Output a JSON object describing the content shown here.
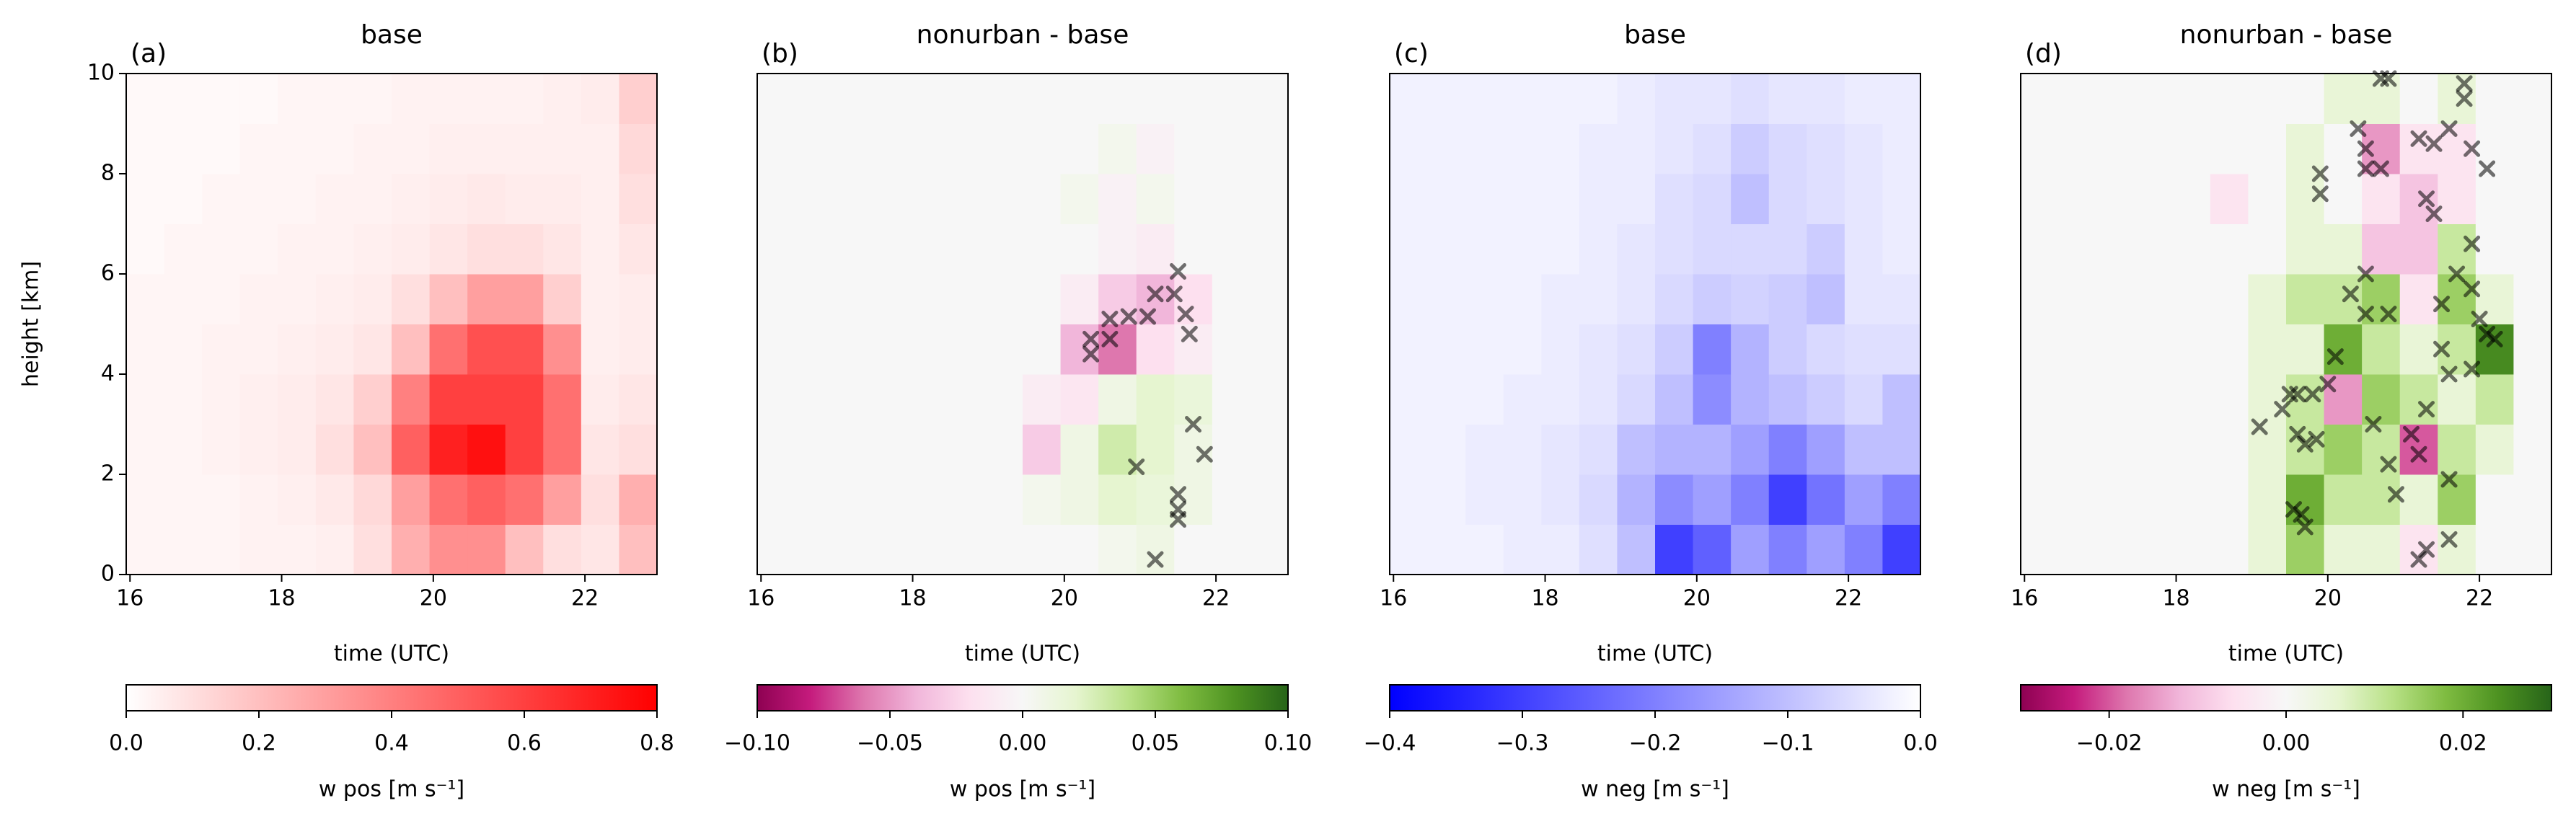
{
  "chart_data": [
    {
      "type": "heatmap",
      "title": "base",
      "panel_label": "(a)",
      "xlabel": "time (UTC)",
      "ylabel": "height [km]",
      "x_edges": [
        15.95,
        16.45,
        16.95,
        17.45,
        17.95,
        18.45,
        18.95,
        19.45,
        19.95,
        20.45,
        20.95,
        21.45,
        21.95,
        22.45,
        22.95
      ],
      "y_edges": [
        0,
        1,
        2,
        3,
        4,
        5,
        6,
        7,
        8,
        9,
        10
      ],
      "values": [
        [
          0.03,
          0.03,
          0.03,
          0.04,
          0.04,
          0.05,
          0.1,
          0.25,
          0.35,
          0.35,
          0.2,
          0.1,
          0.08,
          0.2
        ],
        [
          0.03,
          0.03,
          0.03,
          0.04,
          0.05,
          0.07,
          0.12,
          0.3,
          0.45,
          0.5,
          0.45,
          0.3,
          0.1,
          0.25
        ],
        [
          0.03,
          0.03,
          0.04,
          0.05,
          0.06,
          0.1,
          0.2,
          0.5,
          0.7,
          0.75,
          0.6,
          0.45,
          0.08,
          0.1
        ],
        [
          0.03,
          0.03,
          0.04,
          0.05,
          0.06,
          0.08,
          0.15,
          0.4,
          0.6,
          0.6,
          0.6,
          0.45,
          0.06,
          0.08
        ],
        [
          0.03,
          0.03,
          0.04,
          0.04,
          0.05,
          0.06,
          0.08,
          0.2,
          0.45,
          0.55,
          0.55,
          0.35,
          0.05,
          0.06
        ],
        [
          0.03,
          0.03,
          0.03,
          0.04,
          0.04,
          0.05,
          0.06,
          0.1,
          0.2,
          0.3,
          0.3,
          0.15,
          0.05,
          0.06
        ],
        [
          0.02,
          0.03,
          0.03,
          0.03,
          0.04,
          0.04,
          0.05,
          0.06,
          0.08,
          0.1,
          0.1,
          0.08,
          0.05,
          0.08
        ],
        [
          0.02,
          0.02,
          0.03,
          0.03,
          0.03,
          0.04,
          0.04,
          0.05,
          0.06,
          0.07,
          0.06,
          0.06,
          0.05,
          0.1
        ],
        [
          0.02,
          0.02,
          0.02,
          0.03,
          0.03,
          0.03,
          0.04,
          0.04,
          0.05,
          0.05,
          0.05,
          0.05,
          0.05,
          0.12
        ],
        [
          0.02,
          0.02,
          0.02,
          0.02,
          0.03,
          0.03,
          0.03,
          0.04,
          0.04,
          0.04,
          0.04,
          0.05,
          0.06,
          0.15
        ]
      ],
      "xlim": [
        15.95,
        22.95
      ],
      "ylim": [
        0,
        10
      ],
      "xticks": [
        16,
        18,
        20,
        22
      ],
      "yticks": [
        0,
        2,
        4,
        6,
        8,
        10
      ],
      "colorbar": {
        "label": "w pos [m s⁻¹]",
        "lim": [
          0,
          0.8
        ],
        "cmap": [
          "#ffffff",
          "#ff0000"
        ],
        "ticks": [
          {
            "value": 0,
            "label": "0.0"
          },
          {
            "value": 0.2,
            "label": "0.2"
          },
          {
            "value": 0.4,
            "label": "0.4"
          },
          {
            "value": 0.6,
            "label": "0.6"
          },
          {
            "value": 0.8,
            "label": "0.8"
          }
        ]
      }
    },
    {
      "type": "heatmap",
      "title": "nonurban - base",
      "panel_label": "(b)",
      "xlabel": "time (UTC)",
      "x_edges": [
        15.95,
        16.45,
        16.95,
        17.45,
        17.95,
        18.45,
        18.95,
        19.45,
        19.95,
        20.45,
        20.95,
        21.45,
        21.95,
        22.45,
        22.95
      ],
      "y_edges": [
        0,
        1,
        2,
        3,
        4,
        5,
        6,
        7,
        8,
        9,
        10
      ],
      "values": [
        [
          0,
          0,
          0,
          0,
          0,
          0,
          0,
          0,
          0,
          0.005,
          0.01,
          0,
          0,
          0
        ],
        [
          0,
          0,
          0,
          0,
          0,
          0,
          0,
          0.005,
          0.01,
          0.02,
          0.015,
          0.01,
          0,
          0
        ],
        [
          0,
          0,
          0,
          0,
          0,
          0,
          0,
          -0.03,
          0.01,
          0.03,
          0.02,
          0.01,
          0,
          0
        ],
        [
          0,
          0,
          0,
          0,
          0,
          0,
          0,
          -0.01,
          -0.015,
          0.01,
          0.02,
          0.015,
          0,
          0
        ],
        [
          0,
          0,
          0,
          0,
          0,
          0,
          0,
          0,
          -0.04,
          -0.06,
          -0.02,
          -0.01,
          0,
          0
        ],
        [
          0,
          0,
          0,
          0,
          0,
          0,
          0,
          0,
          -0.01,
          -0.03,
          -0.04,
          -0.02,
          0,
          0
        ],
        [
          0,
          0,
          0,
          0,
          0,
          0,
          0,
          0,
          0,
          -0.005,
          -0.01,
          0,
          0,
          0
        ],
        [
          0,
          0,
          0,
          0,
          0,
          0,
          0,
          0,
          0.005,
          -0.005,
          0.005,
          0,
          0,
          0
        ],
        [
          0,
          0,
          0,
          0,
          0,
          0,
          0,
          0,
          0,
          0.005,
          -0.005,
          0,
          0,
          0
        ],
        [
          0,
          0,
          0,
          0,
          0,
          0,
          0,
          0,
          0,
          0,
          0,
          0,
          0,
          0
        ]
      ],
      "xlim": [
        15.95,
        22.95
      ],
      "ylim": [
        0,
        10
      ],
      "xticks": [
        16,
        18,
        20,
        22
      ],
      "markers": {
        "color": "#000000",
        "x": [
          20.35,
          20.35,
          20.6,
          20.6,
          20.85,
          21.1,
          21.2,
          21.45,
          21.5,
          21.6,
          21.65,
          21.7,
          21.85,
          20.95,
          21.5,
          21.5,
          21.5,
          21.2
        ],
        "y": [
          4.7,
          4.4,
          4.7,
          5.1,
          5.15,
          5.15,
          5.6,
          5.6,
          6.05,
          5.2,
          4.8,
          3.0,
          2.4,
          2.15,
          1.6,
          1.3,
          1.1,
          0.3
        ]
      },
      "colorbar": {
        "label": "w pos [m s⁻¹]",
        "lim": [
          -0.1,
          0.1
        ],
        "cmap": [
          "#8e0152",
          "#c51b7d",
          "#de77ae",
          "#f1b6da",
          "#fde0ef",
          "#f7f7f7",
          "#e6f5d0",
          "#b8e186",
          "#7fbc41",
          "#4d9221",
          "#276419"
        ],
        "ticks": [
          {
            "value": -0.1,
            "label": "−0.10"
          },
          {
            "value": -0.05,
            "label": "−0.05"
          },
          {
            "value": 0,
            "label": "0.00"
          },
          {
            "value": 0.05,
            "label": "0.05"
          },
          {
            "value": 0.1,
            "label": "0.10"
          }
        ]
      }
    },
    {
      "type": "heatmap",
      "title": "base",
      "panel_label": "(c)",
      "xlabel": "time (UTC)",
      "x_edges": [
        15.95,
        16.45,
        16.95,
        17.45,
        17.95,
        18.45,
        18.95,
        19.45,
        19.95,
        20.45,
        20.95,
        21.45,
        21.95,
        22.45,
        22.95
      ],
      "y_edges": [
        0,
        1,
        2,
        3,
        4,
        5,
        6,
        7,
        8,
        9,
        10
      ],
      "values": [
        [
          -0.02,
          -0.02,
          -0.02,
          -0.03,
          -0.03,
          -0.05,
          -0.1,
          -0.3,
          -0.25,
          -0.15,
          -0.2,
          -0.15,
          -0.2,
          -0.3
        ],
        [
          -0.02,
          -0.02,
          -0.03,
          -0.03,
          -0.04,
          -0.06,
          -0.12,
          -0.18,
          -0.15,
          -0.2,
          -0.3,
          -0.22,
          -0.15,
          -0.2
        ],
        [
          -0.02,
          -0.02,
          -0.03,
          -0.03,
          -0.04,
          -0.05,
          -0.1,
          -0.12,
          -0.12,
          -0.15,
          -0.2,
          -0.15,
          -0.1,
          -0.1
        ],
        [
          -0.02,
          -0.02,
          -0.02,
          -0.03,
          -0.03,
          -0.04,
          -0.06,
          -0.1,
          -0.18,
          -0.12,
          -0.1,
          -0.08,
          -0.06,
          -0.1
        ],
        [
          -0.02,
          -0.02,
          -0.02,
          -0.02,
          -0.03,
          -0.04,
          -0.05,
          -0.08,
          -0.2,
          -0.12,
          -0.08,
          -0.06,
          -0.05,
          -0.05
        ],
        [
          -0.02,
          -0.02,
          -0.02,
          -0.02,
          -0.03,
          -0.03,
          -0.04,
          -0.06,
          -0.08,
          -0.07,
          -0.08,
          -0.1,
          -0.04,
          -0.04
        ],
        [
          -0.02,
          -0.02,
          -0.02,
          -0.02,
          -0.02,
          -0.03,
          -0.04,
          -0.05,
          -0.06,
          -0.06,
          -0.06,
          -0.08,
          -0.04,
          -0.03
        ],
        [
          -0.02,
          -0.02,
          -0.02,
          -0.02,
          -0.02,
          -0.03,
          -0.03,
          -0.05,
          -0.06,
          -0.1,
          -0.06,
          -0.05,
          -0.04,
          -0.03
        ],
        [
          -0.02,
          -0.02,
          -0.02,
          -0.02,
          -0.02,
          -0.03,
          -0.03,
          -0.04,
          -0.05,
          -0.08,
          -0.06,
          -0.05,
          -0.04,
          -0.03
        ],
        [
          -0.02,
          -0.02,
          -0.02,
          -0.02,
          -0.02,
          -0.02,
          -0.03,
          -0.04,
          -0.04,
          -0.05,
          -0.04,
          -0.04,
          -0.03,
          -0.03
        ]
      ],
      "xlim": [
        15.95,
        22.95
      ],
      "ylim": [
        0,
        10
      ],
      "xticks": [
        16,
        18,
        20,
        22
      ],
      "colorbar": {
        "label": "w neg [m s⁻¹]",
        "lim": [
          -0.4,
          0
        ],
        "cmap": [
          "#0000ff",
          "#ffffff"
        ],
        "ticks": [
          {
            "value": -0.4,
            "label": "−0.4"
          },
          {
            "value": -0.3,
            "label": "−0.3"
          },
          {
            "value": -0.2,
            "label": "−0.2"
          },
          {
            "value": -0.1,
            "label": "−0.1"
          },
          {
            "value": 0,
            "label": "0.0"
          }
        ]
      }
    },
    {
      "type": "heatmap",
      "title": "nonurban - base",
      "panel_label": "(d)",
      "xlabel": "time (UTC)",
      "x_edges": [
        15.95,
        16.45,
        16.95,
        17.45,
        17.95,
        18.45,
        18.95,
        19.45,
        19.95,
        20.45,
        20.95,
        21.45,
        21.95,
        22.45,
        22.95
      ],
      "y_edges": [
        0,
        1,
        2,
        3,
        4,
        5,
        6,
        7,
        8,
        9,
        10
      ],
      "values": [
        [
          0,
          0,
          0,
          0,
          0,
          0,
          0.005,
          0.015,
          0.005,
          0.005,
          -0.005,
          0.005,
          0,
          0
        ],
        [
          0,
          0,
          0,
          0,
          0,
          0,
          0.005,
          0.02,
          0.01,
          0.01,
          0.005,
          0.015,
          0,
          0
        ],
        [
          0,
          0,
          0,
          0,
          0,
          0,
          0.005,
          0.01,
          0.015,
          0.01,
          -0.02,
          0.01,
          0.005,
          0
        ],
        [
          0,
          0,
          0,
          0,
          0,
          0,
          0.005,
          0.01,
          -0.015,
          0.015,
          0.01,
          0.005,
          0.01,
          0
        ],
        [
          0,
          0,
          0,
          0,
          0,
          0,
          0.005,
          0.005,
          0.02,
          0.01,
          0.005,
          0.01,
          0.025,
          0
        ],
        [
          0,
          0,
          0,
          0,
          0,
          0,
          0.005,
          0.01,
          0.01,
          0.015,
          -0.005,
          0.015,
          0.005,
          0
        ],
        [
          0,
          0,
          0,
          0,
          0,
          0,
          0,
          0.005,
          0.005,
          -0.01,
          -0.01,
          0.01,
          0,
          0
        ],
        [
          0,
          0,
          0,
          0,
          0,
          -0.005,
          0,
          0.005,
          0,
          -0.005,
          -0.01,
          -0.005,
          0,
          0
        ],
        [
          0,
          0,
          0,
          0,
          0,
          0,
          0,
          0.005,
          0,
          -0.015,
          -0.005,
          -0.005,
          0,
          0
        ],
        [
          0,
          0,
          0,
          0,
          0,
          0,
          0,
          0,
          0.005,
          0.005,
          0,
          0.005,
          0,
          0
        ]
      ],
      "xlim": [
        15.95,
        22.95
      ],
      "ylim": [
        0,
        10
      ],
      "xticks": [
        16,
        18,
        20,
        22
      ],
      "markers": {
        "color": "#000000",
        "x": [
          19.65,
          19.7,
          19.55,
          19.1,
          19.6,
          19.7,
          19.85,
          19.5,
          19.6,
          19.4,
          19.8,
          20.1,
          20.0,
          20.5,
          20.8,
          20.3,
          20.5,
          20.6,
          20.8,
          20.9,
          21.2,
          21.1,
          21.3,
          21.6,
          21.3,
          21.2,
          21.6,
          21.6,
          21.5,
          22.0,
          22.1,
          22.2,
          21.9,
          21.5,
          21.9,
          21.7,
          21.3,
          21.4,
          21.2,
          21.4,
          21.6,
          22.1,
          21.9,
          20.4,
          20.5,
          20.7,
          20.5,
          19.9,
          19.9,
          21.8,
          21.8,
          20.7,
          20.8,
          21.9
        ],
        "y": [
          1.2,
          0.95,
          1.3,
          2.95,
          2.8,
          2.6,
          2.7,
          3.6,
          3.6,
          3.3,
          3.6,
          4.35,
          3.8,
          5.2,
          5.2,
          5.6,
          6.0,
          3.0,
          2.2,
          1.6,
          2.4,
          2.8,
          3.3,
          1.9,
          0.5,
          0.3,
          0.7,
          4.0,
          4.5,
          5.1,
          4.8,
          4.7,
          4.1,
          5.4,
          5.7,
          6.0,
          7.5,
          7.2,
          8.7,
          8.6,
          8.9,
          8.1,
          8.5,
          8.9,
          8.5,
          8.1,
          8.1,
          8.0,
          7.6,
          9.5,
          9.8,
          9.9,
          9.9,
          6.6
        ]
      },
      "colorbar": {
        "label": "w neg [m s⁻¹]",
        "lim": [
          -0.03,
          0.03
        ],
        "cmap": [
          "#8e0152",
          "#c51b7d",
          "#de77ae",
          "#f1b6da",
          "#fde0ef",
          "#f7f7f7",
          "#e6f5d0",
          "#b8e186",
          "#7fbc41",
          "#4d9221",
          "#276419"
        ],
        "ticks": [
          {
            "value": -0.02,
            "label": "−0.02"
          },
          {
            "value": 0,
            "label": "0.00"
          },
          {
            "value": 0.02,
            "label": "0.02"
          }
        ]
      }
    }
  ]
}
